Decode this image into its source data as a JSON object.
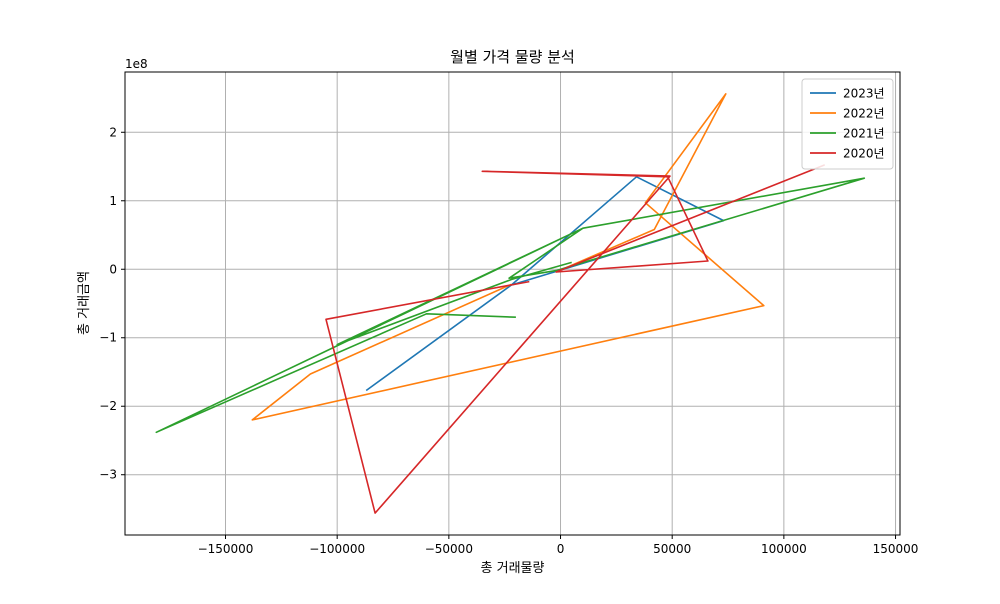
{
  "chart_data": {
    "type": "line",
    "title": "월별 가격 물량 분석",
    "xlabel": "총 거래물량",
    "ylabel": "총 거래금액",
    "y_offset_text": "1e8",
    "xlim": [
      -195000,
      152000
    ],
    "ylim": [
      -3.88,
      2.88
    ],
    "y_scale": 100000000,
    "grid": true,
    "legend_position": "upper right",
    "x_ticks": [
      {
        "value": -150000,
        "label": "−150000"
      },
      {
        "value": -100000,
        "label": "−100000"
      },
      {
        "value": -50000,
        "label": "−50000"
      },
      {
        "value": 0,
        "label": "0"
      },
      {
        "value": 50000,
        "label": "50000"
      },
      {
        "value": 100000,
        "label": "100000"
      },
      {
        "value": 150000,
        "label": "150000"
      }
    ],
    "y_ticks": [
      {
        "value": -3,
        "label": "−3"
      },
      {
        "value": -2,
        "label": "−2"
      },
      {
        "value": -1,
        "label": "−1"
      },
      {
        "value": 0,
        "label": "0"
      },
      {
        "value": 1,
        "label": "1"
      },
      {
        "value": 2,
        "label": "2"
      }
    ],
    "series": [
      {
        "name": "2023년",
        "color": "#1f77b4",
        "points": [
          [
            -87000,
            -1.77
          ],
          [
            -22000,
            -0.23
          ],
          [
            34000,
            1.35
          ],
          [
            73000,
            0.71
          ],
          [
            0,
            -0.01
          ],
          [
            73000,
            0.71
          ],
          [
            -22000,
            -0.23
          ]
        ]
      },
      {
        "name": "2022년",
        "color": "#ff7f0e",
        "points": [
          [
            -22000,
            -0.22
          ],
          [
            -112000,
            -1.53
          ],
          [
            -138000,
            -2.2
          ],
          [
            91000,
            -0.53
          ],
          [
            38000,
            0.97
          ],
          [
            74000,
            2.56
          ],
          [
            42000,
            0.58
          ],
          [
            -2000,
            -0.04
          ]
        ]
      },
      {
        "name": "2021년",
        "color": "#2ca02c",
        "points": [
          [
            -20000,
            -0.7
          ],
          [
            -60000,
            -0.65
          ],
          [
            -181000,
            -2.38
          ],
          [
            10000,
            0.6
          ],
          [
            -23000,
            -0.13
          ],
          [
            -2000,
            -0.02
          ],
          [
            136000,
            1.33
          ],
          [
            10000,
            0.6
          ],
          [
            -100000,
            -1.1
          ],
          [
            -22000,
            -0.15
          ],
          [
            5000,
            0.1
          ]
        ]
      },
      {
        "name": "2020년",
        "color": "#d62728",
        "points": [
          [
            -14000,
            -0.18
          ],
          [
            -105000,
            -0.73
          ],
          [
            -83000,
            -3.56
          ],
          [
            49000,
            1.36
          ],
          [
            -35000,
            1.43
          ],
          [
            48000,
            1.35
          ],
          [
            66000,
            0.12
          ],
          [
            -2000,
            -0.04
          ],
          [
            118000,
            1.52
          ],
          [
            -2000,
            -0.04
          ]
        ]
      }
    ]
  }
}
